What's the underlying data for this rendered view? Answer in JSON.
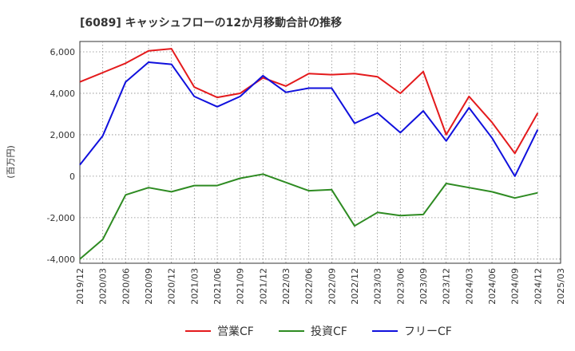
{
  "chart_data": {
    "type": "line",
    "title": "[6089]  キャッシュフローの12か月移動合計の推移",
    "ylabel": "(百万円)",
    "xlabel": "",
    "ylim": [
      -4200,
      6500
    ],
    "yticks": [
      6000,
      4000,
      2000,
      0,
      -2000,
      -4000
    ],
    "ytick_labels": [
      "6,000",
      "4,000",
      "2,000",
      "0",
      "-2,000",
      "-4,000"
    ],
    "grid": true,
    "legend_position": "bottom-center",
    "categories": [
      "2019/12",
      "2020/03",
      "2020/06",
      "2020/09",
      "2020/12",
      "2021/03",
      "2021/06",
      "2021/09",
      "2021/12",
      "2022/03",
      "2022/06",
      "2022/09",
      "2022/12",
      "2023/03",
      "2023/06",
      "2023/09",
      "2023/12",
      "2024/03",
      "2024/06",
      "2024/09",
      "2024/12",
      "2025/03"
    ],
    "series": [
      {
        "name": "営業CF",
        "color": "#e41a1c",
        "values": [
          4550,
          5000,
          5450,
          6050,
          6150,
          4300,
          3800,
          4000,
          4750,
          4350,
          4950,
          4900,
          4950,
          4800,
          4000,
          5050,
          2000,
          3850,
          2600,
          1100,
          3050,
          null
        ]
      },
      {
        "name": "投資CF",
        "color": "#2e8b22",
        "values": [
          -4000,
          -3050,
          -900,
          -550,
          -750,
          -450,
          -450,
          -100,
          100,
          -300,
          -700,
          -650,
          -2400,
          -1750,
          -1900,
          -1850,
          -350,
          -550,
          -750,
          -1050,
          -800,
          null
        ]
      },
      {
        "name": "フリーCF",
        "color": "#1010dd",
        "values": [
          550,
          1950,
          4550,
          5500,
          5400,
          3850,
          3350,
          3850,
          4850,
          4050,
          4250,
          4250,
          2550,
          3050,
          2100,
          3150,
          1700,
          3300,
          1850,
          0,
          2250,
          null
        ]
      }
    ]
  }
}
